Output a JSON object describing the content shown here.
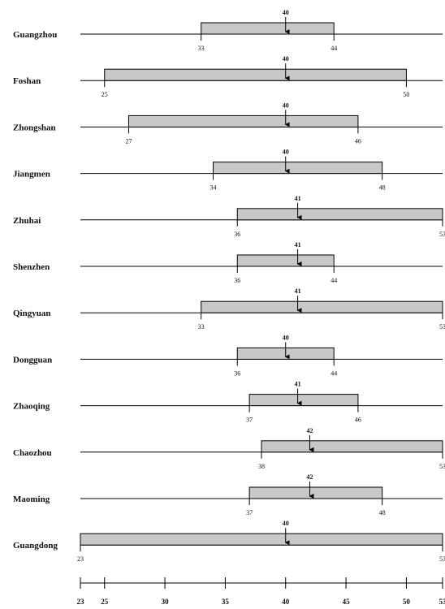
{
  "chart_data": {
    "type": "range",
    "x_axis": {
      "min": 23,
      "max": 53,
      "ticks": [
        23,
        25,
        30,
        35,
        40,
        45,
        50,
        53
      ]
    },
    "grid": false,
    "colors": {
      "box_fill": "#c8c8c8",
      "line": "#000000"
    },
    "rows": [
      {
        "label": "Guangzhou",
        "low": 33,
        "high": 44,
        "mid": 40
      },
      {
        "label": "Foshan",
        "low": 25,
        "high": 50,
        "mid": 40
      },
      {
        "label": "Zhongshan",
        "low": 27,
        "high": 46,
        "mid": 40
      },
      {
        "label": "Jiangmen",
        "low": 34,
        "high": 48,
        "mid": 40
      },
      {
        "label": "Zhuhai",
        "low": 36,
        "high": 53,
        "mid": 41
      },
      {
        "label": "Shenzhen",
        "low": 36,
        "high": 44,
        "mid": 41
      },
      {
        "label": "Qingyuan",
        "low": 33,
        "high": 53,
        "mid": 41
      },
      {
        "label": "Dongguan",
        "low": 36,
        "high": 44,
        "mid": 40
      },
      {
        "label": "Zhaoqing",
        "low": 37,
        "high": 46,
        "mid": 41
      },
      {
        "label": "Chaozhou",
        "low": 38,
        "high": 53,
        "mid": 42
      },
      {
        "label": "Maoming",
        "low": 37,
        "high": 48,
        "mid": 42
      },
      {
        "label": "Guangdong",
        "low": 23,
        "high": 53,
        "mid": 40
      }
    ]
  }
}
